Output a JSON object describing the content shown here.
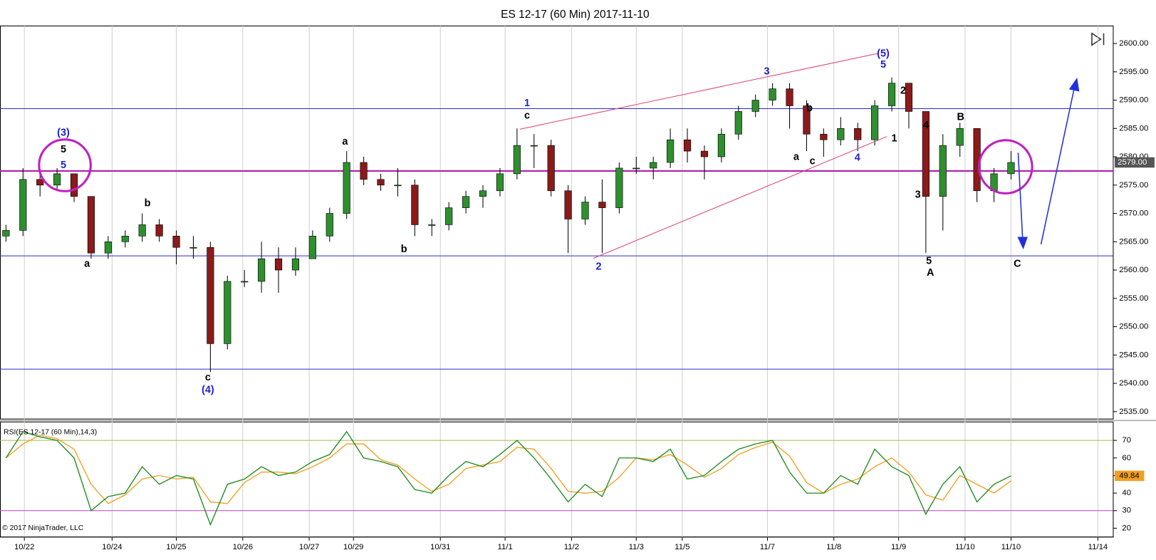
{
  "title": "ES 12-17 (60 Min)  2017-11-10",
  "credit": "© 2017 NinjaTrader, LLC",
  "chart_data": [
    {
      "type": "candlestick",
      "xlim": [
        -0.35,
        65
      ],
      "xticks": [
        {
          "value": 1.08,
          "label": "10/22"
        },
        {
          "value": 6.23,
          "label": "10/24"
        },
        {
          "value": 10.0,
          "label": "10/25"
        },
        {
          "value": 13.9,
          "label": "10/26"
        },
        {
          "value": 17.8,
          "label": "10/27"
        },
        {
          "value": 20.4,
          "label": "10/29"
        },
        {
          "value": 25.5,
          "label": "10/31"
        },
        {
          "value": 29.3,
          "label": "11/1"
        },
        {
          "value": 33.2,
          "label": "11/2"
        },
        {
          "value": 37.0,
          "label": "11/3"
        },
        {
          "value": 39.7,
          "label": "11/5"
        },
        {
          "value": 44.7,
          "label": "11/7"
        },
        {
          "value": 48.6,
          "label": "11/8"
        },
        {
          "value": 52.4,
          "label": "11/9"
        },
        {
          "value": 56.3,
          "label": "11/10"
        },
        {
          "value": 59.0,
          "label": "11/10"
        },
        {
          "value": 64.1,
          "label": "11/14"
        }
      ],
      "ylim": [
        2533.7,
        2603.1
      ],
      "yticks": [
        {
          "value": 2535,
          "label": "2535.00"
        },
        {
          "value": 2540,
          "label": "2540.00"
        },
        {
          "value": 2545,
          "label": "2545.00"
        },
        {
          "value": 2550,
          "label": "2550.00"
        },
        {
          "value": 2555,
          "label": "2555.00"
        },
        {
          "value": 2560,
          "label": "2560.00"
        },
        {
          "value": 2565,
          "label": "2565.00"
        },
        {
          "value": 2570,
          "label": "2570.00"
        },
        {
          "value": 2575,
          "label": "2575.00"
        },
        {
          "value": 2580,
          "label": "2580.00"
        },
        {
          "value": 2585,
          "label": "2585.00"
        },
        {
          "value": 2590,
          "label": "2590.00"
        },
        {
          "value": 2595,
          "label": "2595.00"
        },
        {
          "value": 2600,
          "label": "2600.00"
        }
      ],
      "open": [
        2566,
        2567,
        2576,
        2575,
        2577,
        2573,
        2563,
        2565,
        2566,
        2568,
        2566,
        2564,
        2564,
        2547,
        2558,
        2558,
        2562,
        2560,
        2562,
        2566,
        2570,
        2579,
        2576,
        2575,
        2575,
        2568,
        2568,
        2571,
        2573,
        2574,
        2577,
        2582,
        2582,
        2574,
        2569,
        2572,
        2571,
        2578,
        2578,
        2579,
        2583,
        2581,
        2580,
        2584,
        2588,
        2590,
        2592,
        2589,
        2584,
        2583,
        2585,
        2583,
        2589,
        2593,
        2588,
        2573,
        2582,
        2585,
        2574,
        2577
      ],
      "high": [
        2568,
        2578,
        2577,
        2578,
        2577,
        2573,
        2566,
        2567,
        2570,
        2569,
        2567,
        2566,
        2565,
        2559,
        2560,
        2565,
        2564,
        2564,
        2567,
        2571,
        2581,
        2580,
        2577,
        2578,
        2576,
        2569,
        2572,
        2574,
        2575,
        2578,
        2585,
        2584,
        2583,
        2575,
        2573,
        2576,
        2579,
        2580,
        2580,
        2585,
        2585,
        2582,
        2585,
        2589,
        2591,
        2593,
        2593,
        2590,
        2585,
        2587,
        2586,
        2590,
        2594,
        2593,
        2588,
        2584,
        2586,
        2585,
        2578,
        2581
      ],
      "low": [
        2565,
        2566,
        2573,
        2574,
        2572,
        2562,
        2562,
        2564,
        2565,
        2565,
        2561,
        2562,
        2542,
        2546,
        2557,
        2556,
        2556,
        2559,
        2562,
        2565,
        2569,
        2575,
        2574,
        2573,
        2566,
        2566,
        2567,
        2570,
        2571,
        2573,
        2576,
        2578,
        2573,
        2563,
        2568,
        2563,
        2570,
        2577,
        2576,
        2578,
        2579,
        2576,
        2579,
        2583,
        2587,
        2589,
        2585,
        2581,
        2580,
        2582,
        2581,
        2582,
        2588,
        2585,
        2563,
        2567,
        2580,
        2572,
        2572,
        2576
      ],
      "close": [
        2567,
        2576,
        2575,
        2577,
        2573,
        2563,
        2565,
        2566,
        2568,
        2566,
        2564,
        2564,
        2547,
        2558,
        2558,
        2562,
        2560,
        2562,
        2566,
        2570,
        2579,
        2576,
        2575,
        2575,
        2568,
        2568,
        2571,
        2573,
        2574,
        2577,
        2582,
        2582,
        2574,
        2569,
        2572,
        2571,
        2578,
        2578,
        2579,
        2583,
        2581,
        2580,
        2584,
        2588,
        2590,
        2592,
        2589,
        2584,
        2583,
        2585,
        2583,
        2589,
        2593,
        2588,
        2573,
        2582,
        2585,
        2574,
        2577,
        2579
      ],
      "up_color": "#2f8f2f",
      "down_color": "#8b1a1a",
      "levels": [
        {
          "value": 2588.5,
          "color": "#2a2ad0"
        },
        {
          "value": 2562.5,
          "color": "#2a2ad0"
        },
        {
          "value": 2542.5,
          "color": "#2a2ad0"
        },
        {
          "value": 2577.5,
          "color": "#b01fb0"
        }
      ],
      "last_price": {
        "value": 2579,
        "label": "2579.00"
      },
      "annotations": [
        {
          "text": "(3)",
          "color": "#1f1fd0"
        },
        {
          "text": "5",
          "color": "#000000"
        },
        {
          "text": "5",
          "color": "#1f1fd0"
        },
        {
          "text": "a",
          "color": "#000000"
        },
        {
          "text": "b",
          "color": "#000000"
        },
        {
          "text": "c",
          "color": "#000000"
        },
        {
          "text": "(4)",
          "color": "#1f1fd0"
        },
        {
          "text": "a",
          "color": "#000000"
        },
        {
          "text": "b",
          "color": "#000000"
        },
        {
          "text": "1",
          "color": "#1f1fd0"
        },
        {
          "text": "c",
          "color": "#000000"
        },
        {
          "text": "2",
          "color": "#1f1fd0"
        },
        {
          "text": "3",
          "color": "#1f1fd0"
        },
        {
          "text": "a",
          "color": "#000000"
        },
        {
          "text": "b",
          "color": "#000000"
        },
        {
          "text": "c",
          "color": "#000000"
        },
        {
          "text": "4",
          "color": "#1f1fd0"
        },
        {
          "text": "(5)",
          "color": "#1f1fd0"
        },
        {
          "text": "5",
          "color": "#1f1fd0"
        },
        {
          "text": "2",
          "color": "#000000"
        },
        {
          "text": "1",
          "color": "#000000"
        },
        {
          "text": "4",
          "color": "#000000"
        },
        {
          "text": "3",
          "color": "#000000"
        },
        {
          "text": "B",
          "color": "#000000"
        },
        {
          "text": "5",
          "color": "#000000"
        },
        {
          "text": "A",
          "color": "#000000"
        },
        {
          "text": "C",
          "color": "#000000"
        }
      ]
    },
    {
      "type": "line",
      "title": "RSI(ES 12-17 (60 Min),14,3)",
      "xlim": [
        -0.35,
        65
      ],
      "ylim": [
        15,
        80.5
      ],
      "yticks": [
        20,
        30,
        40,
        50,
        60,
        70
      ],
      "levels": [
        {
          "value": 70,
          "color": "#a8b84a"
        },
        {
          "value": 30,
          "color": "#c040c0"
        }
      ],
      "series": [
        {
          "color": "#1e8a1e",
          "values": [
            60,
            75,
            72,
            70,
            60,
            30,
            38,
            40,
            55,
            45,
            50,
            48,
            22,
            45,
            48,
            55,
            50,
            52,
            58,
            62,
            75,
            60,
            58,
            55,
            42,
            40,
            50,
            58,
            55,
            62,
            70,
            60,
            48,
            35,
            45,
            38,
            60,
            60,
            58,
            65,
            48,
            50,
            58,
            65,
            68,
            70,
            52,
            40,
            40,
            50,
            45,
            65,
            55,
            50,
            28,
            45,
            55,
            35,
            45,
            49.84
          ]
        },
        {
          "color": "#f0a020",
          "values": [
            60,
            68,
            73,
            71,
            65,
            45,
            34,
            39,
            48,
            50,
            48,
            49,
            35,
            34,
            46,
            52,
            52,
            51,
            55,
            60,
            68,
            68,
            59,
            56,
            48,
            41,
            45,
            54,
            56,
            58,
            66,
            65,
            54,
            41,
            40,
            41,
            49,
            60,
            59,
            62,
            56,
            49,
            54,
            62,
            66,
            69,
            61,
            46,
            40,
            45,
            48,
            55,
            60,
            52,
            39,
            36,
            50,
            45,
            40,
            47
          ]
        }
      ]
    }
  ]
}
